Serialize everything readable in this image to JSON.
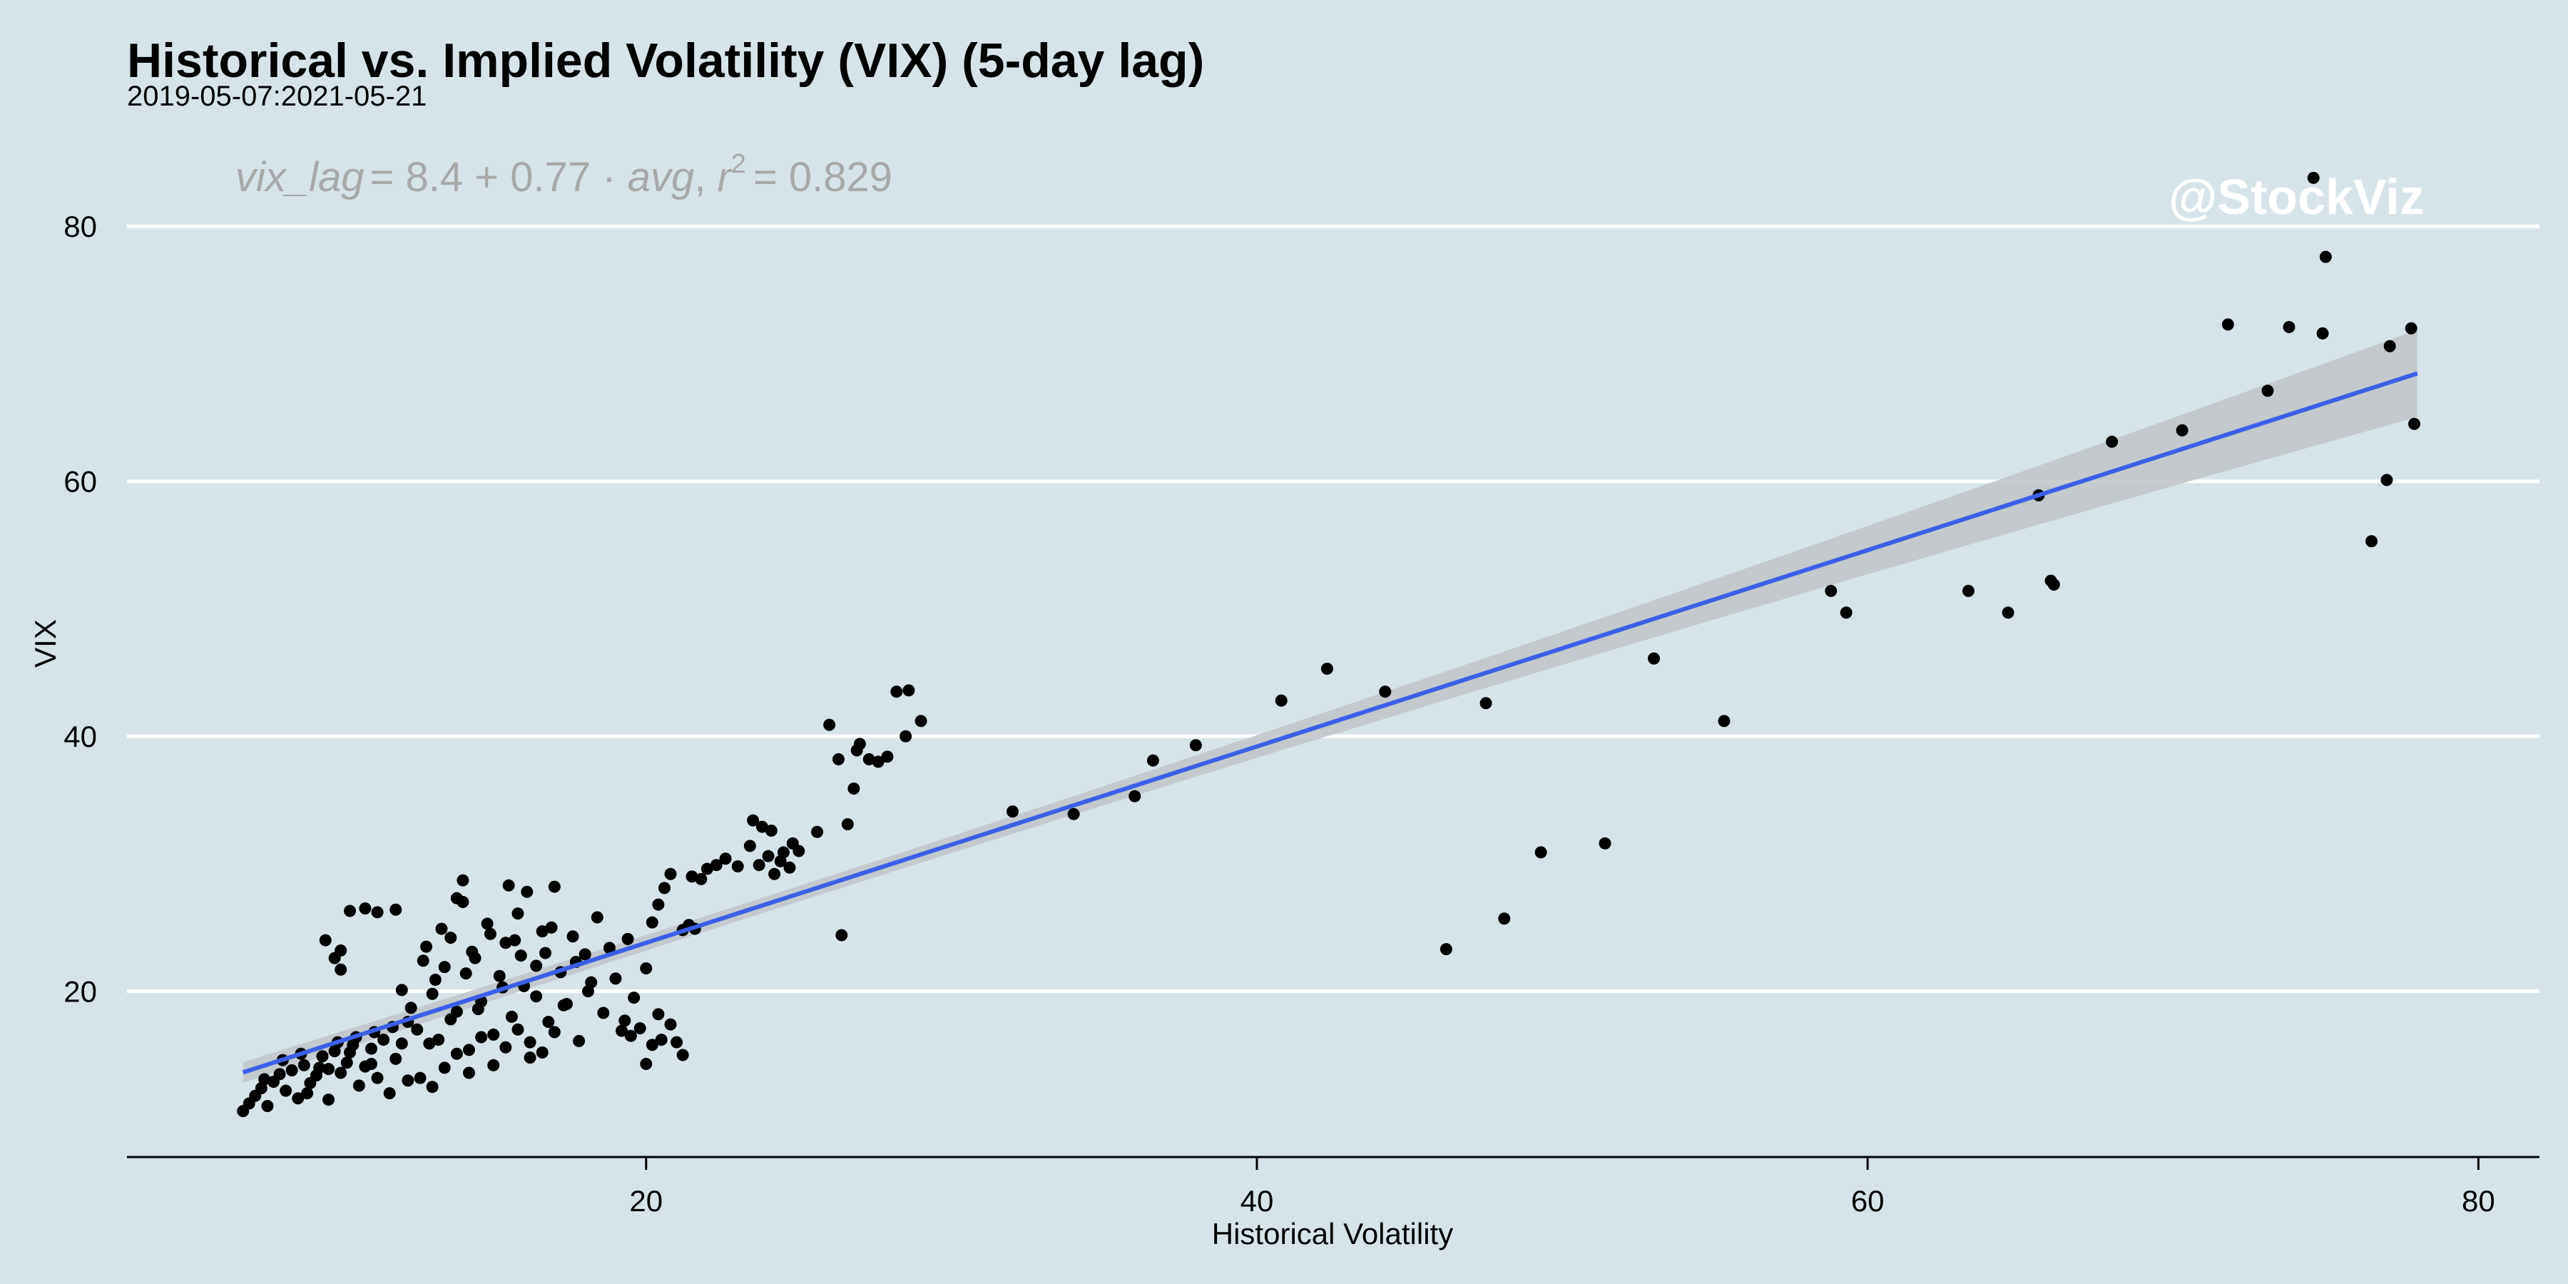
{
  "chart_data": {
    "type": "scatter",
    "title": "Historical vs. Implied Volatility (VIX) (5-day lag)",
    "subtitle": "2019-05-07:2021-05-21",
    "xlabel": "Historical Volatility",
    "ylabel": "VIX",
    "xlim": [
      3,
      82
    ],
    "ylim": [
      7,
      86
    ],
    "x_ticks": [
      20,
      40,
      60,
      80
    ],
    "y_ticks": [
      20,
      40,
      60,
      80
    ],
    "grid": "horizontal",
    "watermark": "@StockViz",
    "regression": {
      "equation_lhs": "vix_lag",
      "equation_rhs_prefix": "= 8.4 + 0.77 · ",
      "equation_var": "avg",
      "r2_label": "r",
      "r2_value": "= 0.829",
      "intercept": 8.4,
      "slope": 0.77,
      "x_range": [
        6.8,
        78
      ],
      "line_color": "#3d5fe8",
      "band_color": "#bfc4c8"
    },
    "point_color": "#000000",
    "points": [
      [
        6.8,
        10.6
      ],
      [
        7.0,
        11.2
      ],
      [
        7.2,
        11.8
      ],
      [
        7.4,
        12.4
      ],
      [
        7.6,
        11.0
      ],
      [
        7.8,
        12.9
      ],
      [
        8.0,
        13.5
      ],
      [
        8.2,
        12.2
      ],
      [
        8.4,
        13.8
      ],
      [
        8.6,
        11.6
      ],
      [
        8.8,
        14.2
      ],
      [
        9.0,
        12.8
      ],
      [
        9.2,
        13.4
      ],
      [
        9.4,
        14.9
      ],
      [
        9.6,
        11.5
      ],
      [
        9.8,
        15.3
      ],
      [
        10.0,
        13.6
      ],
      [
        10.2,
        14.4
      ],
      [
        10.4,
        15.8
      ],
      [
        10.6,
        12.6
      ],
      [
        10.8,
        14.1
      ],
      [
        11.0,
        15.5
      ],
      [
        11.2,
        13.2
      ],
      [
        11.4,
        16.2
      ],
      [
        11.6,
        12.0
      ],
      [
        11.8,
        14.7
      ],
      [
        12.0,
        15.9
      ],
      [
        12.2,
        13.0
      ],
      [
        7.5,
        13.1
      ],
      [
        8.1,
        14.6
      ],
      [
        8.7,
        15.1
      ],
      [
        9.3,
        14.0
      ],
      [
        9.9,
        16.0
      ],
      [
        10.5,
        16.4
      ],
      [
        11.1,
        16.8
      ],
      [
        11.7,
        17.2
      ],
      [
        8.9,
        12.0
      ],
      [
        9.6,
        13.9
      ],
      [
        10.3,
        15.2
      ],
      [
        11.0,
        14.3
      ],
      [
        9.5,
        24.0
      ],
      [
        9.8,
        22.6
      ],
      [
        10.0,
        21.7
      ],
      [
        10.3,
        26.3
      ],
      [
        10.8,
        26.5
      ],
      [
        11.2,
        26.2
      ],
      [
        11.8,
        26.4
      ],
      [
        10.0,
        23.2
      ],
      [
        12.0,
        20.1
      ],
      [
        12.3,
        18.7
      ],
      [
        12.5,
        17.0
      ],
      [
        12.8,
        23.5
      ],
      [
        13.0,
        19.8
      ],
      [
        13.2,
        16.2
      ],
      [
        13.4,
        21.9
      ],
      [
        13.6,
        24.2
      ],
      [
        13.8,
        18.4
      ],
      [
        14.0,
        27.0
      ],
      [
        14.2,
        15.4
      ],
      [
        14.4,
        22.6
      ],
      [
        14.6,
        19.2
      ],
      [
        14.8,
        25.3
      ],
      [
        15.0,
        16.6
      ],
      [
        15.2,
        21.2
      ],
      [
        15.4,
        23.8
      ],
      [
        15.6,
        18.0
      ],
      [
        15.8,
        26.1
      ],
      [
        16.0,
        20.4
      ],
      [
        16.2,
        14.8
      ],
      [
        16.4,
        22.0
      ],
      [
        16.6,
        24.7
      ],
      [
        16.8,
        17.6
      ],
      [
        17.0,
        28.2
      ],
      [
        17.2,
        21.5
      ],
      [
        17.4,
        19.0
      ],
      [
        17.6,
        24.3
      ],
      [
        17.8,
        16.1
      ],
      [
        18.0,
        22.9
      ],
      [
        18.2,
        20.7
      ],
      [
        18.4,
        25.8
      ],
      [
        18.6,
        18.3
      ],
      [
        18.8,
        23.4
      ],
      [
        19.0,
        21.0
      ],
      [
        19.2,
        16.9
      ],
      [
        19.4,
        24.1
      ],
      [
        19.6,
        19.5
      ],
      [
        12.6,
        13.2
      ],
      [
        13.0,
        12.5
      ],
      [
        13.4,
        14.0
      ],
      [
        13.8,
        15.1
      ],
      [
        14.2,
        13.6
      ],
      [
        14.6,
        16.4
      ],
      [
        15.0,
        14.2
      ],
      [
        15.4,
        15.6
      ],
      [
        15.8,
        17.0
      ],
      [
        16.2,
        16.0
      ],
      [
        16.6,
        15.2
      ],
      [
        17.0,
        16.8
      ],
      [
        12.2,
        17.6
      ],
      [
        12.9,
        15.9
      ],
      [
        13.6,
        17.8
      ],
      [
        14.0,
        28.7
      ],
      [
        13.8,
        27.3
      ],
      [
        15.5,
        28.3
      ],
      [
        16.1,
        27.8
      ],
      [
        13.3,
        24.9
      ],
      [
        14.9,
        24.5
      ],
      [
        16.7,
        23.0
      ],
      [
        15.3,
        20.3
      ],
      [
        14.1,
        21.4
      ],
      [
        15.9,
        22.8
      ],
      [
        16.4,
        19.6
      ],
      [
        17.3,
        18.9
      ],
      [
        14.5,
        18.6
      ],
      [
        13.1,
        20.9
      ],
      [
        12.7,
        22.4
      ],
      [
        18.1,
        20.0
      ],
      [
        17.7,
        22.3
      ],
      [
        16.9,
        25.0
      ],
      [
        15.7,
        24.0
      ],
      [
        14.3,
        23.1
      ],
      [
        19.5,
        16.5
      ],
      [
        19.8,
        17.1
      ],
      [
        20.0,
        14.3
      ],
      [
        20.2,
        15.8
      ],
      [
        20.5,
        16.2
      ],
      [
        20.8,
        17.4
      ],
      [
        21.0,
        16.0
      ],
      [
        21.2,
        15.0
      ],
      [
        19.3,
        17.7
      ],
      [
        20.4,
        18.2
      ],
      [
        20.0,
        21.8
      ],
      [
        20.2,
        25.4
      ],
      [
        20.4,
        26.8
      ],
      [
        20.6,
        28.1
      ],
      [
        20.8,
        29.2
      ],
      [
        21.2,
        24.8
      ],
      [
        21.5,
        29.0
      ],
      [
        21.8,
        28.8
      ],
      [
        22.0,
        29.6
      ],
      [
        22.3,
        29.9
      ],
      [
        22.6,
        30.4
      ],
      [
        23.0,
        29.8
      ],
      [
        21.4,
        25.2
      ],
      [
        21.6,
        24.9
      ],
      [
        23.5,
        33.4
      ],
      [
        23.8,
        32.9
      ],
      [
        24.0,
        30.6
      ],
      [
        24.2,
        29.2
      ],
      [
        24.5,
        30.9
      ],
      [
        24.8,
        31.6
      ],
      [
        24.1,
        32.6
      ],
      [
        24.4,
        30.2
      ],
      [
        24.7,
        29.7
      ],
      [
        25.0,
        31.0
      ],
      [
        23.7,
        29.9
      ],
      [
        23.4,
        31.4
      ],
      [
        26.0,
        40.9
      ],
      [
        26.3,
        38.2
      ],
      [
        26.6,
        33.1
      ],
      [
        26.8,
        35.9
      ],
      [
        27.0,
        39.4
      ],
      [
        27.3,
        38.2
      ],
      [
        27.6,
        38.0
      ],
      [
        27.9,
        38.4
      ],
      [
        28.2,
        43.5
      ],
      [
        28.6,
        43.6
      ],
      [
        29.0,
        41.2
      ],
      [
        28.5,
        40.0
      ],
      [
        26.9,
        38.9
      ],
      [
        25.6,
        32.5
      ],
      [
        26.4,
        24.4
      ],
      [
        32.0,
        34.1
      ],
      [
        34.0,
        33.9
      ],
      [
        36.0,
        35.3
      ],
      [
        36.6,
        38.1
      ],
      [
        38.0,
        39.3
      ],
      [
        40.8,
        42.8
      ],
      [
        42.3,
        45.3
      ],
      [
        44.2,
        43.5
      ],
      [
        46.2,
        23.3
      ],
      [
        47.5,
        42.6
      ],
      [
        48.1,
        25.7
      ],
      [
        49.3,
        30.9
      ],
      [
        51.4,
        31.6
      ],
      [
        53.0,
        46.1
      ],
      [
        55.3,
        41.2
      ],
      [
        58.8,
        51.4
      ],
      [
        59.3,
        49.7
      ],
      [
        63.3,
        51.4
      ],
      [
        64.6,
        49.7
      ],
      [
        65.6,
        58.9
      ],
      [
        66.0,
        52.2
      ],
      [
        66.1,
        51.9
      ],
      [
        68.0,
        63.1
      ],
      [
        70.3,
        64.0
      ],
      [
        71.8,
        72.3
      ],
      [
        73.1,
        67.1
      ],
      [
        73.8,
        72.1
      ],
      [
        74.6,
        83.8
      ],
      [
        74.9,
        71.6
      ],
      [
        75.0,
        77.6
      ],
      [
        76.5,
        55.3
      ],
      [
        77.0,
        60.1
      ],
      [
        77.1,
        70.6
      ],
      [
        77.8,
        72.0
      ],
      [
        77.9,
        64.5
      ]
    ]
  }
}
